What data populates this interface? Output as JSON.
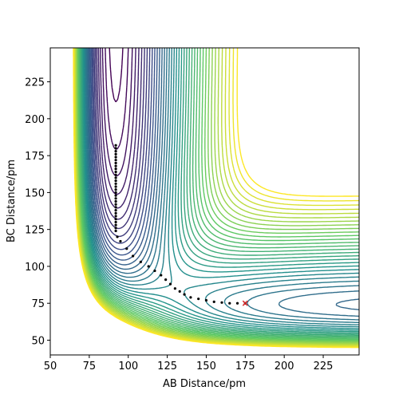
{
  "chart_data": {
    "type": "contour",
    "x_label": "AB Distance/pm",
    "y_label": "BC Distance/pm",
    "xlim": [
      50,
      248
    ],
    "ylim": [
      40,
      248
    ],
    "xticks": [
      50,
      75,
      100,
      125,
      150,
      175,
      200,
      225
    ],
    "yticks": [
      50,
      75,
      100,
      125,
      150,
      175,
      200,
      225
    ],
    "colormap": "viridis",
    "levels": [
      -580,
      -570,
      -560,
      -550,
      -540,
      -530,
      -520,
      -510,
      -500,
      -490,
      -480,
      -470,
      -460,
      -450,
      -440,
      -430,
      -420,
      -410,
      -400,
      -390,
      -380,
      -370,
      -360,
      -350,
      -340,
      -330,
      -320,
      -310,
      -300,
      -290,
      -280,
      -270,
      -260,
      -250,
      -240,
      -230,
      -220,
      -210,
      -200,
      -190
    ],
    "trajectory": {
      "color": "#000000",
      "x": [
        92,
        92,
        92,
        92,
        92,
        92,
        92,
        92,
        92,
        92,
        92,
        92,
        92,
        92,
        92,
        92,
        92,
        92,
        92,
        92,
        92,
        92,
        92,
        92,
        92,
        92,
        92,
        92,
        92,
        92,
        93,
        95,
        99,
        103,
        108,
        113,
        117,
        121,
        124,
        127,
        130,
        133,
        136,
        140,
        145,
        150,
        155,
        160,
        165,
        170,
        175
      ],
      "y": [
        182,
        180,
        178,
        176,
        174,
        172,
        170,
        168,
        166,
        164,
        162,
        160,
        158,
        156,
        154,
        152,
        150,
        148,
        146,
        144,
        142,
        140,
        138,
        136,
        134,
        132,
        130,
        128,
        126,
        124,
        120,
        117,
        112,
        107,
        103,
        100,
        97,
        94,
        91,
        88,
        85,
        83,
        81,
        79,
        78,
        77,
        76,
        75.5,
        75,
        75,
        75
      ]
    },
    "end_marker": {
      "x": 175,
      "y": 75,
      "color": "#d62728"
    }
  }
}
